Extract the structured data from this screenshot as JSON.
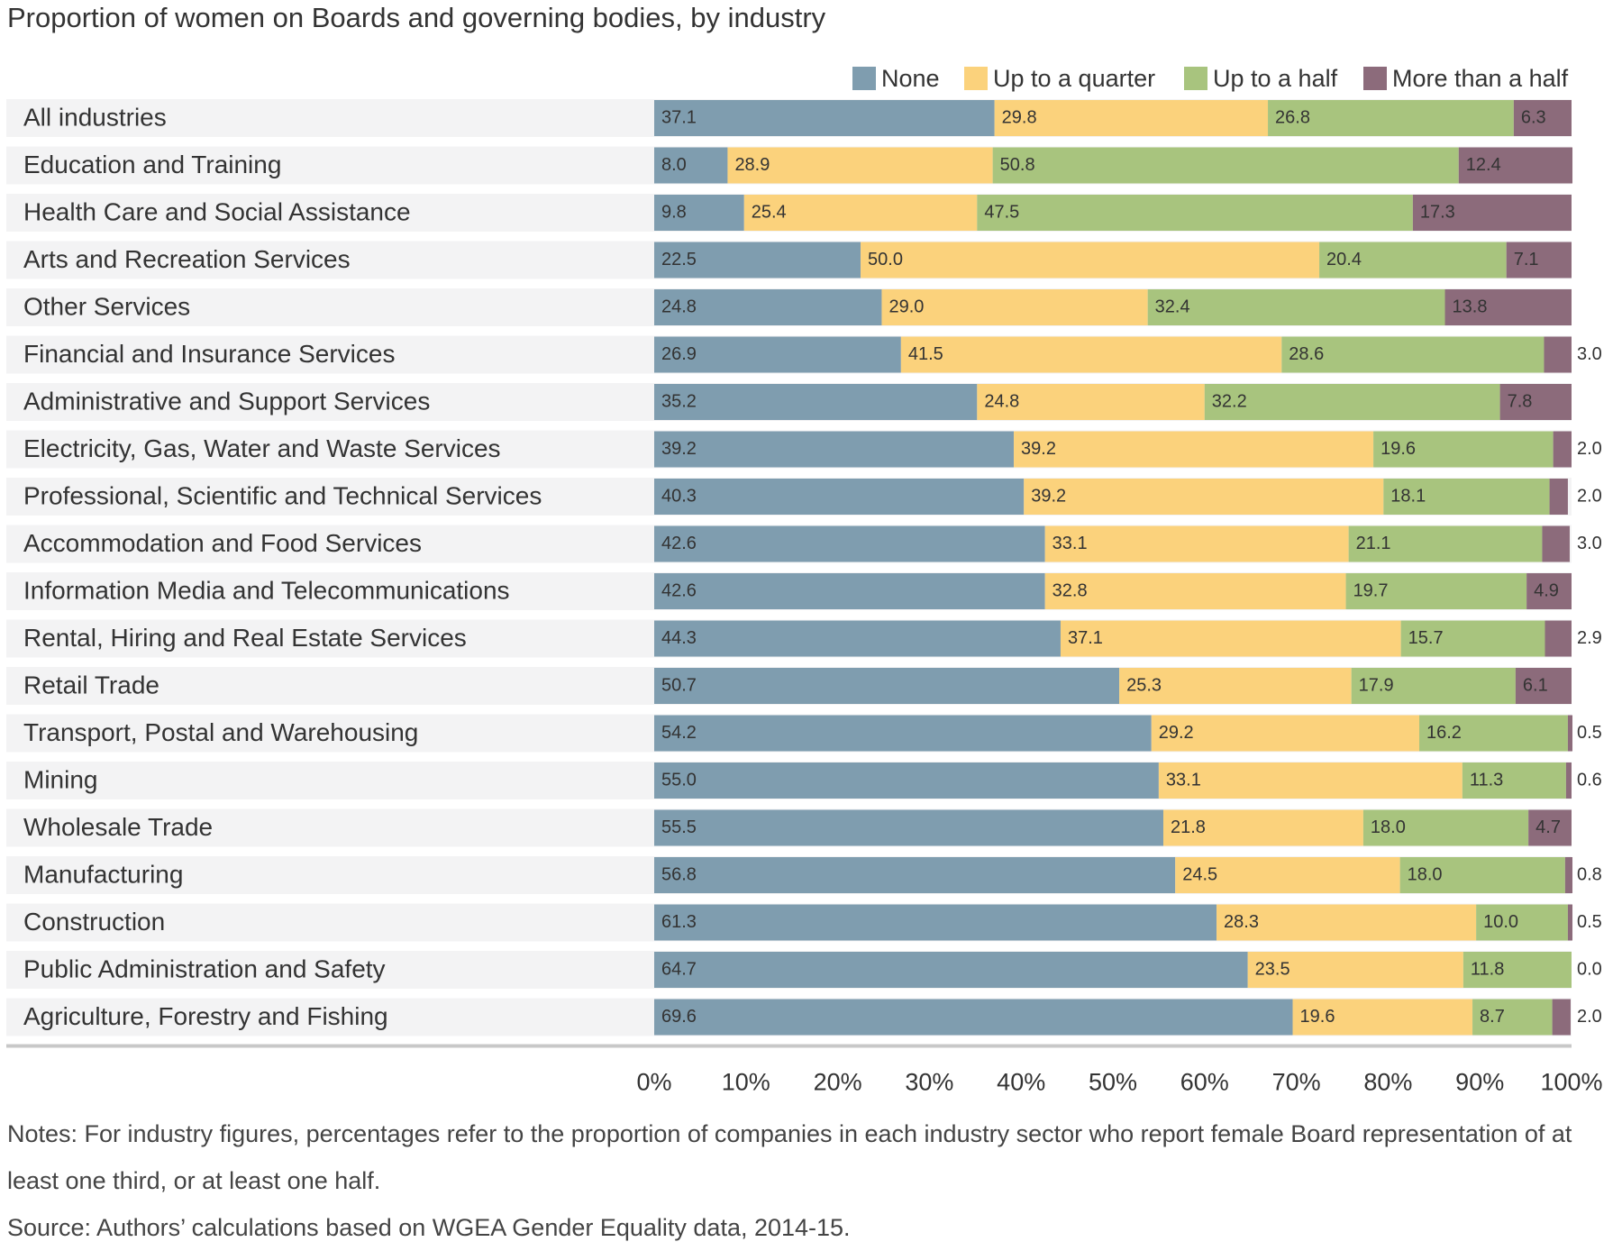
{
  "chart_data": {
    "type": "stacked-bar-horizontal",
    "title": "Proportion of women on Boards and governing bodies, by industry",
    "categories": [
      "All industries",
      "Education and Training",
      "Health Care and Social Assistance",
      "Arts and Recreation Services",
      "Other Services",
      "Financial and Insurance Services",
      "Administrative and Support Services",
      "Electricity, Gas, Water and Waste Services",
      "Professional, Scientific and Technical Services",
      "Accommodation and Food Services",
      "Information Media and Telecommunications",
      "Rental, Hiring and Real Estate Services",
      "Retail Trade",
      "Transport, Postal and Warehousing",
      "Mining",
      "Wholesale Trade",
      "Manufacturing",
      "Construction",
      "Public Administration and Safety",
      "Agriculture, Forestry and Fishing"
    ],
    "series": [
      {
        "name": "None",
        "color": "#7f9daf",
        "values": [
          37.1,
          8.0,
          9.8,
          22.5,
          24.8,
          26.9,
          35.2,
          39.2,
          40.3,
          42.6,
          42.6,
          44.3,
          50.7,
          54.2,
          55.0,
          55.5,
          56.8,
          61.3,
          64.7,
          69.6
        ],
        "value_labels": [
          "37.1",
          "8.0",
          "9.8",
          "22.5",
          "24.8",
          "26.9",
          "35.2",
          "39.2",
          "40.3",
          "42.6",
          "42.6",
          "44.3",
          "50.7",
          "54.2",
          "55.0",
          "55.5",
          "56.8",
          "61.3",
          "64.7",
          "69.6"
        ]
      },
      {
        "name": "Up to a quarter",
        "color": "#fbd27c",
        "values": [
          29.8,
          28.9,
          25.4,
          50.0,
          29.0,
          41.5,
          24.8,
          39.2,
          39.2,
          33.1,
          32.8,
          37.1,
          25.3,
          29.2,
          33.1,
          21.8,
          24.5,
          28.3,
          23.5,
          19.6
        ],
        "value_labels": [
          "29.8",
          "28.9",
          "25.4",
          "50.0",
          "29.0",
          "41.5",
          "24.8",
          "39.2",
          "39.2",
          "33.1",
          "32.8",
          "37.1",
          "25.3",
          "29.2",
          "33.1",
          "21.8",
          "24.5",
          "28.3",
          "23.5",
          "19.6"
        ]
      },
      {
        "name": "Up to a half",
        "color": "#a8c47e",
        "values": [
          26.8,
          50.8,
          47.5,
          20.4,
          32.4,
          28.6,
          32.2,
          19.6,
          18.1,
          21.1,
          19.7,
          15.7,
          17.9,
          16.2,
          11.3,
          18.0,
          18.0,
          10.0,
          11.8,
          8.7
        ],
        "value_labels": [
          "26.8",
          "50.8",
          "47.5",
          "20.4",
          "32.4",
          "28.6",
          "32.2",
          "19.6",
          "18.1",
          "21.1",
          "19.7",
          "15.7",
          "17.9",
          "16.2",
          "11.3",
          "18.0",
          "18.0",
          "10.0",
          "11.8",
          "8.7"
        ]
      },
      {
        "name": "More than a half",
        "color": "#8c6b7b",
        "values": [
          6.3,
          12.4,
          17.3,
          7.1,
          13.8,
          3.0,
          7.8,
          2.0,
          2.0,
          3.0,
          4.9,
          2.9,
          6.1,
          0.5,
          0.6,
          4.7,
          0.8,
          0.5,
          0.0,
          2.0
        ],
        "value_labels": [
          "6.3",
          "12.4",
          "17.3",
          "7.1",
          "13.8",
          "3.0",
          "7.8",
          "2.0",
          "2.0",
          "3.0",
          "4.9",
          "2.9",
          "6.1",
          "0.5",
          "0.6",
          "4.7",
          "0.8",
          "0.5",
          "0.0",
          "2.0"
        ]
      }
    ],
    "xlim": [
      0,
      100
    ],
    "xticks": [
      {
        "value": 0,
        "label": "0%"
      },
      {
        "value": 10,
        "label": "10%"
      },
      {
        "value": 20,
        "label": "20%"
      },
      {
        "value": 30,
        "label": "30%"
      },
      {
        "value": 40,
        "label": "40%"
      },
      {
        "value": 50,
        "label": "50%"
      },
      {
        "value": 60,
        "label": "60%"
      },
      {
        "value": 70,
        "label": "70%"
      },
      {
        "value": 80,
        "label": "80%"
      },
      {
        "value": 90,
        "label": "90%"
      },
      {
        "value": 100,
        "label": "100%"
      }
    ],
    "notes": "Notes: For industry figures, percentages refer to the proportion of companies in each industry sector who report female Board representation of at least one third, or at least one half.",
    "source": "Source: Authors’ calculations based on WGEA Gender Equality data, 2014-15."
  }
}
